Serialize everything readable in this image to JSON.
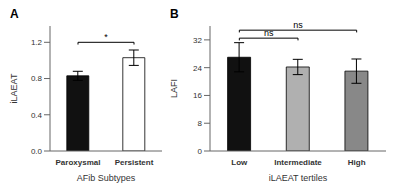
{
  "chart_data": [
    {
      "type": "bar",
      "title": "A",
      "categories": [
        "Paroxysmal",
        "Persistent"
      ],
      "values": [
        0.83,
        1.03
      ],
      "errors": [
        0.05,
        0.085
      ],
      "colors": [
        "#111111",
        "#ffffff"
      ],
      "xlabel": "AFib Subtypes",
      "ylabel": "iLAEAT",
      "ylim": [
        0.0,
        1.38
      ],
      "yticks": [
        {
          "value": 0.0,
          "label": "0.0"
        },
        0.4,
        0.8,
        1.2
      ],
      "grid": false,
      "annotations": [
        {
          "label": "*",
          "x1": "Paroxysmal",
          "x2": "Persistent",
          "y": 1.2
        }
      ]
    },
    {
      "type": "bar",
      "title": "B",
      "categories": [
        "Low",
        "Intermediate",
        "High"
      ],
      "values": [
        27.0,
        24.2,
        23.0
      ],
      "errors": [
        4.2,
        2.2,
        3.5
      ],
      "colors": [
        "#111111",
        "#b0b0b0",
        "#888888"
      ],
      "xlabel": "iLAEAT tertiles",
      "ylabel": "LAFI",
      "ylim": [
        0,
        36
      ],
      "yticks": [
        0,
        8,
        16,
        24,
        32
      ],
      "grid": false,
      "annotations": [
        {
          "label": "ns",
          "x1": "Low",
          "x2": "Intermediate",
          "y": 32.5
        },
        {
          "label": "ns",
          "x1": "Low",
          "x2": "High",
          "y": 34.8
        }
      ]
    }
  ]
}
